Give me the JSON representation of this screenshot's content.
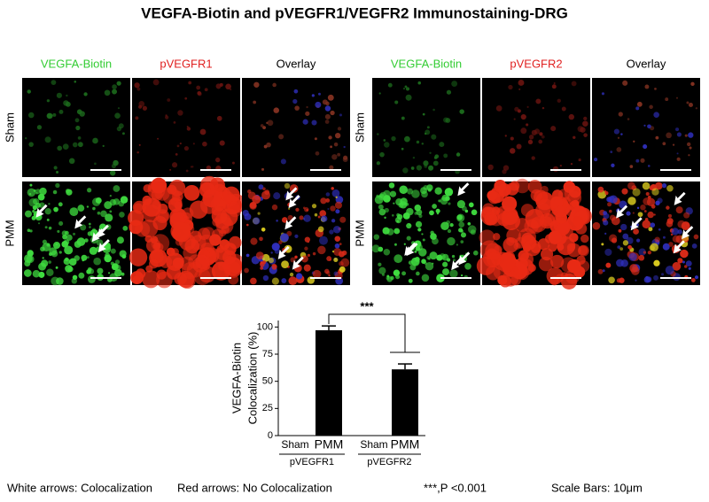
{
  "title": "VEGFA-Biotin and pVEGFR1/VEGFR2 Immunostaining-DRG",
  "panels": [
    {
      "columns": [
        "VEGFA-Biotin",
        "pVEGFR1",
        "Overlay"
      ],
      "rows": [
        "Sham",
        "PMM"
      ]
    },
    {
      "columns": [
        "VEGFA-Biotin",
        "pVEGFR2",
        "Overlay"
      ],
      "rows": [
        "Sham",
        "PMM"
      ]
    }
  ],
  "chart_data": {
    "type": "bar",
    "y_label": [
      "VEGFA-Biotin",
      "Colocalization (%)"
    ],
    "categories": [
      "Sham",
      "PMM",
      "Sham",
      "PMM"
    ],
    "groups": [
      "pVEGFR1",
      "pVEGFR2"
    ],
    "values": [
      0,
      97,
      0,
      61
    ],
    "errors": [
      null,
      4,
      null,
      5
    ],
    "color": "#000000",
    "ylim": [
      0,
      106
    ],
    "yticks": [
      0,
      25,
      50,
      75,
      100
    ],
    "annotation": "***"
  },
  "footer": [
    "White arrows: Colocalization",
    "Red arrows: No Colocalization",
    "***,P <0.001",
    "Scale Bars: 10μm"
  ]
}
